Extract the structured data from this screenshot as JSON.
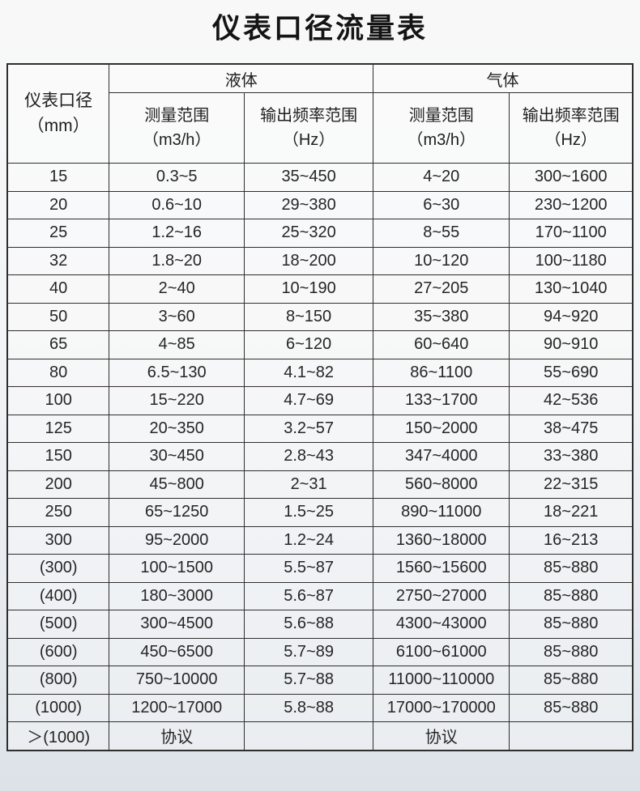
{
  "page": {
    "title": "仪表口径流量表"
  },
  "table": {
    "corner_header": "仪表口径\n（mm）",
    "groups": [
      {
        "label": "液体"
      },
      {
        "label": "气体"
      }
    ],
    "sub_headers": [
      "测量范围\n（m3/h）",
      "输出频率范围\n（Hz）",
      "测量范围\n（m3/h）",
      "输出频率范围\n（Hz）"
    ],
    "column_keys": [
      "diameter",
      "liquid-range",
      "liquid-freq",
      "gas-range",
      "gas-freq"
    ]
  },
  "chart_data": {
    "type": "table",
    "title": "仪表口径流量表",
    "columns": [
      "仪表口径（mm）",
      "液体 测量范围（m3/h）",
      "液体 输出频率范围（Hz）",
      "气体 测量范围（m3/h）",
      "气体 输出频率范围（Hz）"
    ],
    "rows": [
      [
        "15",
        "0.3~5",
        "35~450",
        "4~20",
        "300~1600"
      ],
      [
        "20",
        "0.6~10",
        "29~380",
        "6~30",
        "230~1200"
      ],
      [
        "25",
        "1.2~16",
        "25~320",
        "8~55",
        "170~1100"
      ],
      [
        "32",
        "1.8~20",
        "18~200",
        "10~120",
        "100~1180"
      ],
      [
        "40",
        "2~40",
        "10~190",
        "27~205",
        "130~1040"
      ],
      [
        "50",
        "3~60",
        "8~150",
        "35~380",
        "94~920"
      ],
      [
        "65",
        "4~85",
        "6~120",
        "60~640",
        "90~910"
      ],
      [
        "80",
        "6.5~130",
        "4.1~82",
        "86~1100",
        "55~690"
      ],
      [
        "100",
        "15~220",
        "4.7~69",
        "133~1700",
        "42~536"
      ],
      [
        "125",
        "20~350",
        "3.2~57",
        "150~2000",
        "38~475"
      ],
      [
        "150",
        "30~450",
        "2.8~43",
        "347~4000",
        "33~380"
      ],
      [
        "200",
        "45~800",
        "2~31",
        "560~8000",
        "22~315"
      ],
      [
        "250",
        "65~1250",
        "1.5~25",
        "890~11000",
        "18~221"
      ],
      [
        "300",
        "95~2000",
        "1.2~24",
        "1360~18000",
        "16~213"
      ],
      [
        "(300)",
        "100~1500",
        "5.5~87",
        "1560~15600",
        "85~880"
      ],
      [
        "(400)",
        "180~3000",
        "5.6~87",
        "2750~27000",
        "85~880"
      ],
      [
        "(500)",
        "300~4500",
        "5.6~88",
        "4300~43000",
        "85~880"
      ],
      [
        "(600)",
        "450~6500",
        "5.7~89",
        "6100~61000",
        "85~880"
      ],
      [
        "(800)",
        "750~10000",
        "5.7~88",
        "11000~110000",
        "85~880"
      ],
      [
        "(1000)",
        "1200~17000",
        "5.8~88",
        "17000~170000",
        "85~880"
      ],
      [
        "＞(1000)",
        "协议",
        "",
        "协议",
        ""
      ]
    ]
  },
  "colors": {
    "border": "#2e2e2e",
    "text": "#252525",
    "background_top": "#f8f8f9",
    "background_bottom": "#dce2e8"
  }
}
